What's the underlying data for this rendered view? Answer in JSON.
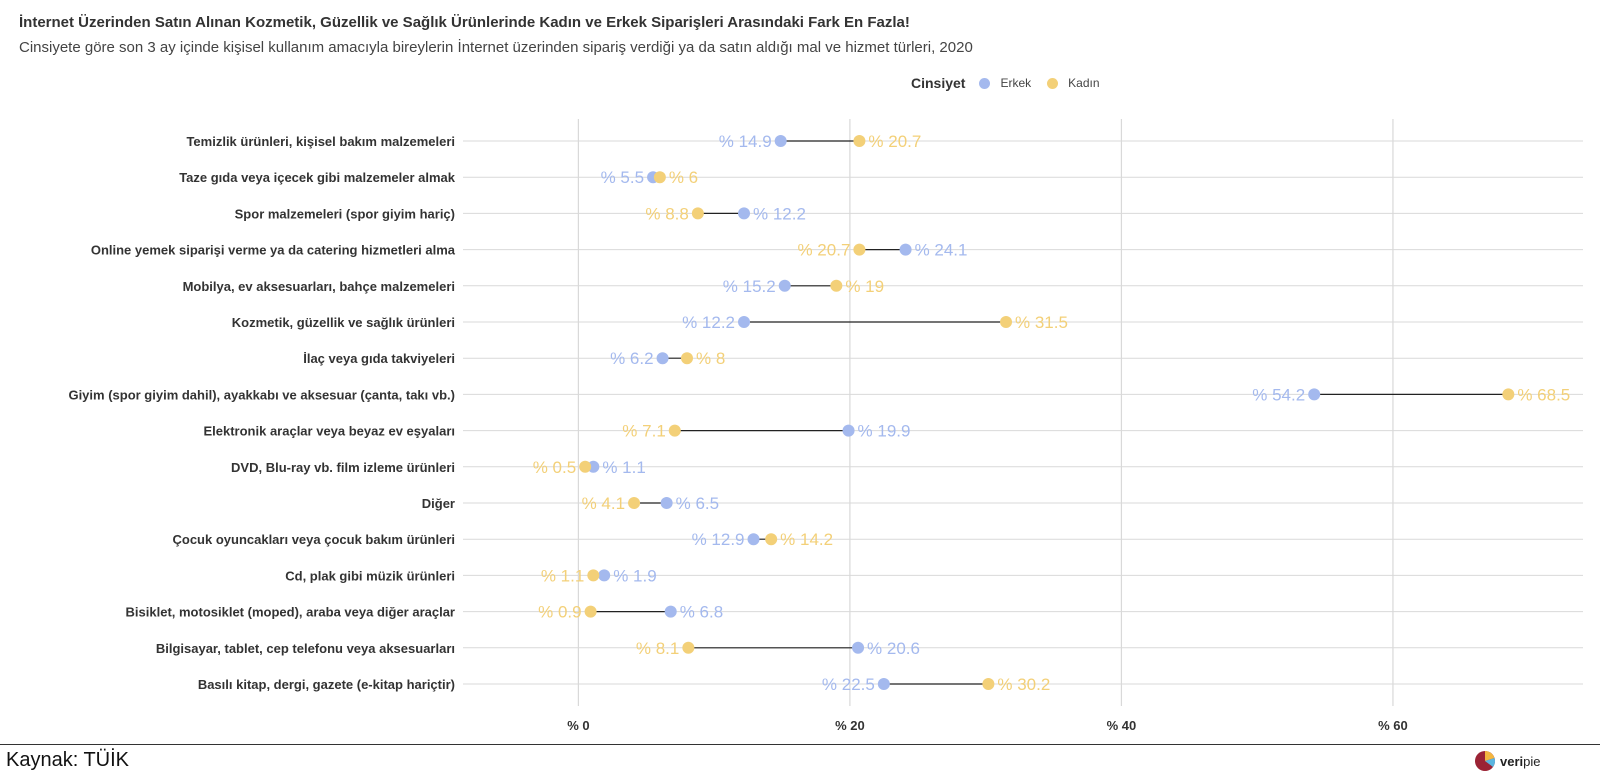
{
  "title": "İnternet Üzerinden Satın Alınan Kozmetik, Güzellik ve Sağlık Ürünlerinde Kadın ve Erkek Siparişleri Arasındaki Fark En Fazla!",
  "subtitle": "Cinsiyete göre son 3 ay içinde kişisel kullanım amacıyla bireylerin İnternet üzerinden sipariş verdiği ya da satın aldığı mal ve hizmet türleri, 2020",
  "legend": {
    "title": "Cinsiyet",
    "erkek_label": "Erkek",
    "kadin_label": "Kadın"
  },
  "colors": {
    "erkek": "#A4B9EE",
    "kadin": "#F3D078",
    "grid": "#D9D9D9",
    "segment": "#222222"
  },
  "source": "Kaynak: TÜİK",
  "logo": {
    "prefix": "veri",
    "suffix": "pie"
  },
  "chart_data": {
    "type": "dumbbell",
    "value_prefix": "% ",
    "xlim": [
      -8.5,
      74
    ],
    "x_ticks": [
      0,
      20,
      40,
      60
    ],
    "x_tick_labels": [
      "% 0",
      "% 20",
      "% 40",
      "% 60"
    ],
    "grid": true,
    "legend_position": "top",
    "categories": [
      "Temizlik ürünleri, kişisel bakım malzemeleri",
      "Taze gıda veya içecek gibi malzemeler almak",
      "Spor malzemeleri (spor giyim hariç)",
      "Online yemek siparişi verme ya da catering hizmetleri alma",
      "Mobilya, ev aksesuarları, bahçe malzemeleri",
      "Kozmetik, güzellik ve sağlık ürünleri",
      "İlaç veya gıda takviyeleri",
      "Giyim (spor giyim dahil), ayakkabı ve aksesuar (çanta, takı vb.)",
      "Elektronik araçlar veya beyaz ev eşyaları",
      "DVD, Blu-ray vb. film izleme ürünleri",
      "Diğer",
      "Çocuk oyuncakları veya çocuk bakım ürünleri",
      "Cd, plak gibi müzik ürünleri",
      "Bisiklet, motosiklet (moped), araba veya diğer araçlar",
      "Bilgisayar, tablet, cep telefonu veya aksesuarları",
      "Basılı kitap, dergi, gazete  (e-kitap hariçtir)"
    ],
    "series": [
      {
        "name": "Erkek",
        "values": [
          14.9,
          5.5,
          12.2,
          24.1,
          15.2,
          12.2,
          6.2,
          54.2,
          19.9,
          1.1,
          6.5,
          12.9,
          1.9,
          6.8,
          20.6,
          22.5
        ]
      },
      {
        "name": "Kadın",
        "values": [
          20.7,
          6,
          8.8,
          20.7,
          19,
          31.5,
          8,
          68.5,
          7.1,
          0.5,
          4.1,
          14.2,
          1.1,
          0.9,
          8.1,
          30.2
        ]
      }
    ]
  }
}
